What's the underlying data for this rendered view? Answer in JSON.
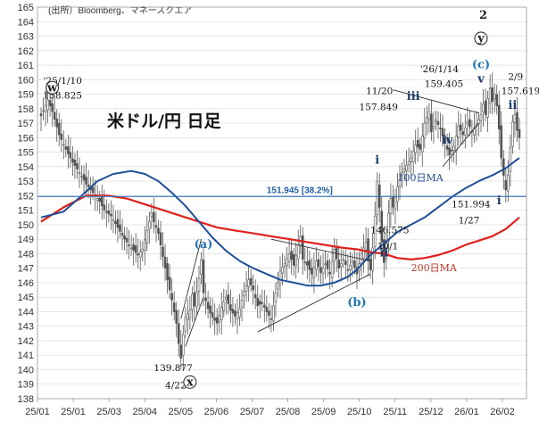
{
  "chart_data": {
    "type": "candlestick",
    "source": "(出所）Bloomberg、マネースクエア",
    "title": "米ドル/円 日足",
    "ylim": [
      138,
      165
    ],
    "y_ticks": [
      138,
      139,
      140,
      141,
      142,
      143,
      144,
      145,
      146,
      147,
      148,
      149,
      150,
      151,
      152,
      153,
      154,
      155,
      156,
      157,
      158,
      159,
      160,
      161,
      162,
      163,
      164,
      165
    ],
    "x_ticks": [
      "25/01",
      "25/01",
      "25/03",
      "25/04",
      "25/05",
      "25/06",
      "25/07",
      "25/08",
      "25/09",
      "25/10",
      "25/11",
      "25/12",
      "26/01",
      "26/02"
    ],
    "price_path": [
      [
        0,
        157.5
      ],
      [
        3,
        158.6
      ],
      [
        5,
        157.8
      ],
      [
        8,
        156.2
      ],
      [
        11,
        155.2
      ],
      [
        14,
        154.3
      ],
      [
        17,
        153.6
      ],
      [
        20,
        152.8
      ],
      [
        23,
        152.2
      ],
      [
        26,
        151.6
      ],
      [
        28,
        151.0
      ],
      [
        31,
        150.6
      ],
      [
        34,
        149.8
      ],
      [
        37,
        149.0
      ],
      [
        40,
        148.4
      ],
      [
        43,
        147.9
      ],
      [
        45,
        148.3
      ],
      [
        47,
        149.6
      ],
      [
        49,
        150.8
      ],
      [
        50,
        150.2
      ],
      [
        52,
        149.4
      ],
      [
        54,
        147.8
      ],
      [
        56,
        146.2
      ],
      [
        58,
        144.8
      ],
      [
        60,
        143.2
      ],
      [
        61,
        141.8
      ],
      [
        62,
        140.8
      ],
      [
        63,
        142.4
      ],
      [
        64,
        143.6
      ],
      [
        66,
        144.1
      ],
      [
        67,
        145.2
      ],
      [
        68,
        144.4
      ],
      [
        70,
        146.3
      ],
      [
        71,
        147.6
      ],
      [
        72,
        145.3
      ],
      [
        74,
        144.2
      ],
      [
        76,
        143.6
      ],
      [
        78,
        143.2
      ],
      [
        80,
        144.3
      ],
      [
        82,
        145.0
      ],
      [
        84,
        144.1
      ],
      [
        86,
        143.7
      ],
      [
        88,
        144.2
      ],
      [
        90,
        145.4
      ],
      [
        92,
        146.2
      ],
      [
        94,
        145.5
      ],
      [
        96,
        144.4
      ],
      [
        98,
        144.6
      ],
      [
        100,
        144.0
      ],
      [
        102,
        143.5
      ],
      [
        104,
        145.3
      ],
      [
        106,
        146.8
      ],
      [
        108,
        147.3
      ],
      [
        110,
        148.0
      ],
      [
        112,
        147.2
      ],
      [
        114,
        148.6
      ],
      [
        115,
        149.2
      ],
      [
        116,
        147.6
      ],
      [
        118,
        147.2
      ],
      [
        120,
        146.6
      ],
      [
        122,
        147.5
      ],
      [
        124,
        146.7
      ],
      [
        126,
        147.3
      ],
      [
        128,
        146.6
      ],
      [
        130,
        148.3
      ],
      [
        132,
        147.0
      ],
      [
        134,
        147.6
      ],
      [
        136,
        146.9
      ],
      [
        138,
        147.5
      ],
      [
        140,
        146.6
      ],
      [
        142,
        148.0
      ],
      [
        144,
        148.8
      ],
      [
        145,
        147.5
      ],
      [
        146,
        146.9
      ],
      [
        147,
        148.4
      ],
      [
        148,
        150.6
      ],
      [
        149,
        153.0
      ],
      [
        150,
        151.2
      ],
      [
        151,
        148.8
      ],
      [
        152,
        147.4
      ],
      [
        153,
        148.9
      ],
      [
        154,
        150.8
      ],
      [
        155,
        151.8
      ],
      [
        156,
        151.2
      ],
      [
        158,
        152.6
      ],
      [
        160,
        153.6
      ],
      [
        162,
        154.1
      ],
      [
        164,
        154.6
      ],
      [
        166,
        155.5
      ],
      [
        168,
        155.2
      ],
      [
        170,
        157.0
      ],
      [
        172,
        157.8
      ],
      [
        173,
        156.4
      ],
      [
        175,
        157.2
      ],
      [
        177,
        156.6
      ],
      [
        179,
        155.6
      ],
      [
        181,
        154.8
      ],
      [
        183,
        155.4
      ],
      [
        185,
        156.8
      ],
      [
        187,
        156.2
      ],
      [
        189,
        157.1
      ],
      [
        191,
        156.4
      ],
      [
        193,
        156.9
      ],
      [
        195,
        157.6
      ],
      [
        196,
        158.3
      ],
      [
        197,
        157.6
      ],
      [
        198,
        158.7
      ],
      [
        199,
        159.4
      ],
      [
        200,
        158.5
      ],
      [
        201,
        159.0
      ],
      [
        202,
        158.2
      ],
      [
        203,
        156.6
      ],
      [
        204,
        154.6
      ],
      [
        205,
        153.4
      ],
      [
        206,
        152.4
      ],
      [
        207,
        153.4
      ],
      [
        208,
        155.3
      ],
      [
        209,
        157.1
      ],
      [
        210,
        157.6
      ],
      [
        211,
        156.5
      ],
      [
        212,
        156.0
      ]
    ],
    "ma100": [
      [
        0,
        150.5
      ],
      [
        10,
        150.9
      ],
      [
        18,
        152.0
      ],
      [
        25,
        153.0
      ],
      [
        32,
        153.5
      ],
      [
        40,
        153.7
      ],
      [
        46,
        153.5
      ],
      [
        52,
        153.0
      ],
      [
        58,
        152.2
      ],
      [
        64,
        151.3
      ],
      [
        70,
        150.2
      ],
      [
        76,
        149.1
      ],
      [
        82,
        148.2
      ],
      [
        88,
        147.5
      ],
      [
        94,
        147.0
      ],
      [
        100,
        146.6
      ],
      [
        106,
        146.2
      ],
      [
        112,
        146.0
      ],
      [
        118,
        145.8
      ],
      [
        124,
        145.8
      ],
      [
        130,
        146.0
      ],
      [
        136,
        146.4
      ],
      [
        140,
        146.9
      ],
      [
        146,
        147.9
      ],
      [
        152,
        148.7
      ],
      [
        158,
        149.5
      ],
      [
        164,
        150.0
      ],
      [
        170,
        150.5
      ],
      [
        176,
        151.2
      ],
      [
        182,
        151.9
      ],
      [
        188,
        152.5
      ],
      [
        194,
        153.0
      ],
      [
        200,
        153.4
      ],
      [
        206,
        153.9
      ],
      [
        212,
        154.6
      ]
    ],
    "ma200": [
      [
        0,
        150.2
      ],
      [
        10,
        151.2
      ],
      [
        20,
        152.0
      ],
      [
        30,
        152.0
      ],
      [
        38,
        151.8
      ],
      [
        46,
        151.4
      ],
      [
        54,
        151.0
      ],
      [
        62,
        150.6
      ],
      [
        70,
        150.2
      ],
      [
        78,
        149.8
      ],
      [
        86,
        149.6
      ],
      [
        94,
        149.4
      ],
      [
        102,
        149.2
      ],
      [
        110,
        149.0
      ],
      [
        118,
        148.8
      ],
      [
        126,
        148.6
      ],
      [
        134,
        148.4
      ],
      [
        140,
        148.3
      ],
      [
        146,
        148.1
      ],
      [
        152,
        148.0
      ],
      [
        158,
        147.7
      ],
      [
        164,
        147.6
      ],
      [
        170,
        147.7
      ],
      [
        176,
        147.9
      ],
      [
        182,
        148.2
      ],
      [
        188,
        148.6
      ],
      [
        194,
        148.9
      ],
      [
        200,
        149.2
      ],
      [
        206,
        149.7
      ],
      [
        212,
        150.5
      ]
    ],
    "hline": {
      "value": 151.945,
      "label": "151.945 [38.2%]"
    },
    "ma100_label": "100日MA",
    "ma200_label": "200日MA",
    "trend_lines": [
      [
        [
          62,
          143.5
        ],
        [
          71,
          149.0
        ]
      ],
      [
        [
          64,
          141.6
        ],
        [
          72,
          145.0
        ]
      ],
      [
        [
          96,
          142.6
        ],
        [
          146,
          146.6
        ]
      ],
      [
        [
          102,
          149.0
        ],
        [
          146,
          147.5
        ]
      ],
      [
        [
          156,
          159.3
        ],
        [
          194,
          157.7
        ]
      ],
      [
        [
          178,
          154.0
        ],
        [
          194,
          157.0
        ]
      ]
    ],
    "annotations": [
      {
        "text": "'25/1/10",
        "x": 1,
        "y": 159.7
      },
      {
        "text": "158.825",
        "x": 1,
        "y": 158.7
      },
      {
        "text": "139.877",
        "x": 50,
        "y": 139.9
      },
      {
        "text": "4/22",
        "x": 55,
        "y": 138.7
      },
      {
        "text": "11/20",
        "x": 144,
        "y": 159.0
      },
      {
        "text": "157.849",
        "x": 141,
        "y": 157.9
      },
      {
        "text": "'26/1/14",
        "x": 168,
        "y": 160.5
      },
      {
        "text": "159.405",
        "x": 170,
        "y": 159.5
      },
      {
        "text": "146.575",
        "x": 146,
        "y": 149.4
      },
      {
        "text": "10/1",
        "x": 149,
        "y": 148.3
      },
      {
        "text": "151.994",
        "x": 182,
        "y": 151.2
      },
      {
        "text": "1/27",
        "x": 185,
        "y": 150.1
      },
      {
        "text": "2/9",
        "x": 207,
        "y": 160.0
      },
      {
        "text": "157.619",
        "x": 204,
        "y": 159.0
      }
    ],
    "wave_labels": [
      {
        "text": "w",
        "x": 5,
        "y": 159.2,
        "color": "#222222",
        "circled": true
      },
      {
        "text": "x",
        "x": 66,
        "y": 138.9,
        "color": "#222222",
        "circled": true
      },
      {
        "text": "y",
        "x": 195,
        "y": 162.6,
        "color": "#222222",
        "circled": true
      },
      {
        "text": "2",
        "x": 196,
        "y": 164.2,
        "color": "#222222",
        "circled": false
      },
      {
        "text": "(a)",
        "x": 72,
        "y": 148.4,
        "color": "#1f77b4",
        "circled": false
      },
      {
        "text": "(b)",
        "x": 140,
        "y": 144.4,
        "color": "#1f77b4",
        "circled": false
      },
      {
        "text": "(c)",
        "x": 195,
        "y": 160.8,
        "color": "#1f77b4",
        "circled": false
      },
      {
        "text": "i",
        "x": 149,
        "y": 154.2,
        "color": "#1a3a6e",
        "circled": false
      },
      {
        "text": "ii",
        "x": 152,
        "y": 147.8,
        "color": "#1a3a6e",
        "circled": false
      },
      {
        "text": "iii",
        "x": 165,
        "y": 158.6,
        "color": "#1a3a6e",
        "circled": false
      },
      {
        "text": "iv",
        "x": 180,
        "y": 155.6,
        "color": "#1a3a6e",
        "circled": false
      },
      {
        "text": "v",
        "x": 195,
        "y": 159.8,
        "color": "#1a3a6e",
        "circled": false
      },
      {
        "text": "i",
        "x": 203,
        "y": 151.4,
        "color": "#1a3a6e",
        "circled": false
      },
      {
        "text": "ii",
        "x": 209,
        "y": 158.0,
        "color": "#1a3a6e",
        "circled": false
      }
    ],
    "colors": {
      "candles": "#555555",
      "ma100": "#1f4e9a",
      "ma200": "#e0201b",
      "hline": "#3a78c2",
      "hline_label": "#1f5fa8",
      "ma200_label": "#c0392b",
      "date_red": "#c0392b",
      "grid": "#d8d8d8"
    }
  }
}
